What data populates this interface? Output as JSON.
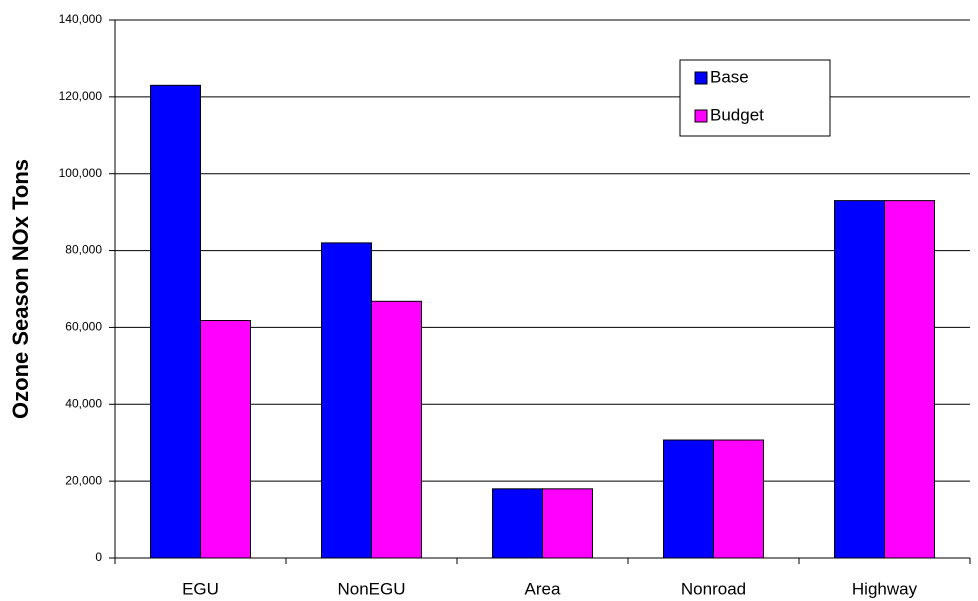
{
  "chart_data": {
    "type": "bar",
    "y_label": "Ozone Season NOx Tons",
    "categories": [
      "EGU",
      "NonEGU",
      "Area",
      "Nonroad",
      "Highway"
    ],
    "series": [
      {
        "name": "Base",
        "color": "#0000ff",
        "values": [
          123000,
          82000,
          18000,
          30700,
          93000
        ]
      },
      {
        "name": "Budget",
        "color": "#ff00ff",
        "values": [
          61800,
          66800,
          18000,
          30700,
          93000
        ]
      }
    ],
    "ylim": [
      0,
      140000
    ],
    "yticks": [
      0,
      {
        "value": 20000,
        "label": "20,000"
      },
      {
        "value": 40000,
        "label": "40,000"
      },
      {
        "value": 60000,
        "label": "60,000"
      },
      {
        "value": 80000,
        "label": "80,000"
      },
      {
        "value": 100000,
        "label": "100,000"
      },
      {
        "value": 120000,
        "label": "120,000"
      },
      {
        "value": 140000,
        "label": "140,000"
      }
    ],
    "grid": true,
    "legend": "top-right"
  }
}
